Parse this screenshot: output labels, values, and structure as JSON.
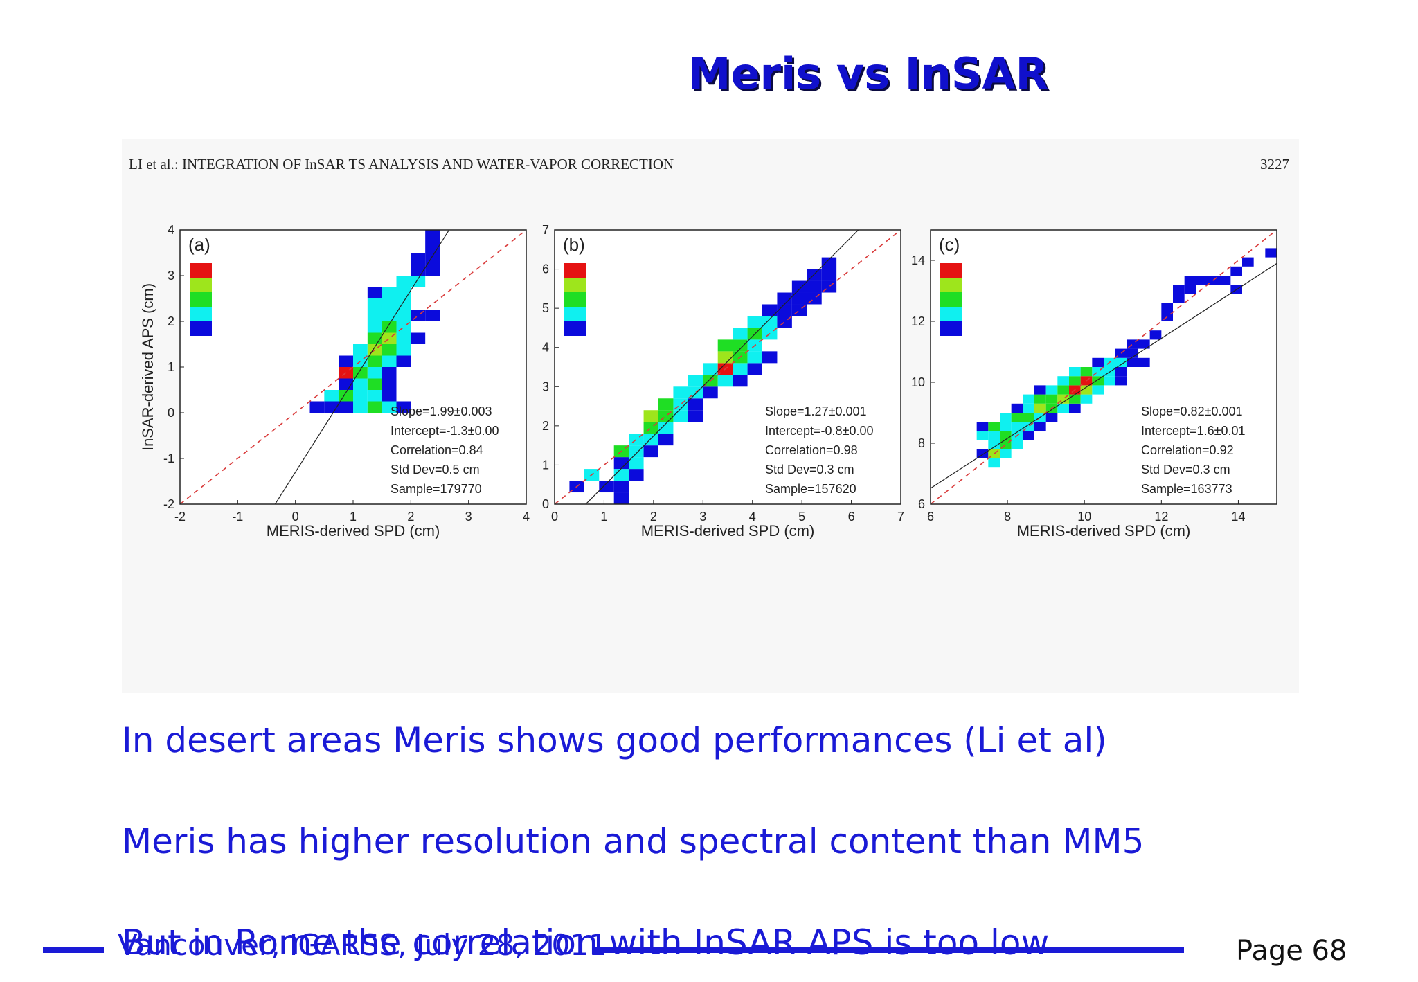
{
  "slide": {
    "title": "Meris vs InSAR",
    "paper_header_left": "LI et al.: INTEGRATION OF InSAR TS ANALYSIS AND WATER-VAPOR CORRECTION",
    "paper_header_right": "3227",
    "bullets": [
      "In desert areas Meris shows good performances (Li et al)",
      "Meris has higher resolution and spectral content than MM5",
      "But in Rome the correlation with InSAR APS is too low"
    ],
    "footer": "Vancouver, IGARSS, July 28, 2011",
    "page": "Page 68",
    "colors": {
      "title": "#1010cc",
      "text": "#1a1ad6",
      "footer_line": "#1a1ad6"
    }
  },
  "chart_data": [
    {
      "type": "heatmap",
      "panel_label": "(a)",
      "xlabel": "MERIS-derived SPD (cm)",
      "ylabel": "InSAR-derived APS (cm)",
      "xlim": [
        -2,
        4
      ],
      "ylim": [
        -2,
        4
      ],
      "xticks": [
        -2,
        -1,
        0,
        1,
        2,
        3,
        4
      ],
      "yticks": [
        -2,
        -1,
        0,
        1,
        2,
        3,
        4
      ],
      "bin": 0.25,
      "stats": [
        "Slope=1.99±0.003",
        "Intercept=-1.3±0.00",
        "Correlation=0.84",
        "Std Dev=0.5 cm",
        "Sample=179770"
      ],
      "fit": {
        "slope": 1.99,
        "intercept": -1.3
      },
      "one_to_one": true,
      "cells": [
        [
          0.25,
          0,
          1
        ],
        [
          0.5,
          0,
          1
        ],
        [
          0.75,
          0,
          1
        ],
        [
          1.0,
          0,
          2
        ],
        [
          1.25,
          0,
          3
        ],
        [
          1.5,
          0,
          2
        ],
        [
          1.75,
          0,
          1
        ],
        [
          0.5,
          0.25,
          2
        ],
        [
          0.75,
          0.25,
          3
        ],
        [
          1.0,
          0.25,
          2
        ],
        [
          1.25,
          0.25,
          2
        ],
        [
          1.5,
          0.25,
          1
        ],
        [
          0.75,
          0.5,
          1
        ],
        [
          1.0,
          0.5,
          2
        ],
        [
          1.25,
          0.5,
          3
        ],
        [
          1.5,
          0.5,
          1
        ],
        [
          0.75,
          0.75,
          5
        ],
        [
          1.0,
          0.75,
          3
        ],
        [
          1.25,
          0.75,
          2
        ],
        [
          1.5,
          0.75,
          1
        ],
        [
          0.75,
          1.0,
          1
        ],
        [
          1.0,
          1.0,
          2
        ],
        [
          1.25,
          1.0,
          3
        ],
        [
          1.5,
          1.0,
          2
        ],
        [
          1.75,
          1.0,
          1
        ],
        [
          1.0,
          1.25,
          2
        ],
        [
          1.25,
          1.25,
          4
        ],
        [
          1.5,
          1.25,
          3
        ],
        [
          1.75,
          1.25,
          2
        ],
        [
          1.25,
          1.5,
          3
        ],
        [
          1.5,
          1.5,
          4
        ],
        [
          1.75,
          1.5,
          2
        ],
        [
          2.0,
          1.5,
          1
        ],
        [
          1.25,
          1.75,
          2
        ],
        [
          1.5,
          1.75,
          3
        ],
        [
          1.75,
          1.75,
          2
        ],
        [
          1.25,
          2.0,
          2
        ],
        [
          1.5,
          2.0,
          2
        ],
        [
          1.75,
          2.0,
          2
        ],
        [
          2.0,
          2.0,
          1
        ],
        [
          2.25,
          2.0,
          1
        ],
        [
          1.25,
          2.25,
          2
        ],
        [
          1.5,
          2.25,
          2
        ],
        [
          1.75,
          2.25,
          2
        ],
        [
          1.25,
          2.5,
          1
        ],
        [
          1.5,
          2.5,
          2
        ],
        [
          1.75,
          2.5,
          2
        ],
        [
          1.75,
          2.75,
          2
        ],
        [
          2.0,
          2.75,
          2
        ],
        [
          2.0,
          3.0,
          1
        ],
        [
          2.25,
          3.0,
          1
        ],
        [
          2.0,
          3.25,
          1
        ],
        [
          2.25,
          3.25,
          1
        ],
        [
          2.25,
          3.5,
          1
        ],
        [
          2.25,
          3.75,
          1
        ]
      ]
    },
    {
      "type": "heatmap",
      "panel_label": "(b)",
      "xlabel": "MERIS-derived SPD (cm)",
      "ylabel": "",
      "xlim": [
        0,
        7
      ],
      "ylim": [
        0,
        7
      ],
      "xticks": [
        0,
        1,
        2,
        3,
        4,
        5,
        6,
        7
      ],
      "yticks": [
        0,
        1,
        2,
        3,
        4,
        5,
        6,
        7
      ],
      "bin": 0.3,
      "stats": [
        "Slope=1.27±0.001",
        "Intercept=-0.8±0.00",
        "Correlation=0.98",
        "Std Dev=0.3 cm",
        "Sample=157620"
      ],
      "fit": {
        "slope": 1.27,
        "intercept": -0.8
      },
      "one_to_one": true,
      "cells": [
        [
          0.3,
          0.3,
          1
        ],
        [
          0.6,
          0.6,
          2
        ],
        [
          0.9,
          0.3,
          1
        ],
        [
          1.2,
          0.3,
          1
        ],
        [
          1.2,
          0.6,
          2
        ],
        [
          1.2,
          0.0,
          1
        ],
        [
          1.2,
          0.9,
          1
        ],
        [
          1.5,
          0.6,
          1
        ],
        [
          1.5,
          0.9,
          2
        ],
        [
          1.2,
          1.2,
          3
        ],
        [
          1.5,
          1.2,
          2
        ],
        [
          1.8,
          1.2,
          1
        ],
        [
          1.5,
          1.5,
          2
        ],
        [
          1.8,
          1.5,
          2
        ],
        [
          2.1,
          1.5,
          1
        ],
        [
          1.8,
          1.8,
          3
        ],
        [
          2.1,
          1.8,
          2
        ],
        [
          1.8,
          2.1,
          4
        ],
        [
          2.1,
          2.1,
          3
        ],
        [
          2.4,
          2.1,
          2
        ],
        [
          2.7,
          2.1,
          1
        ],
        [
          2.4,
          2.4,
          2
        ],
        [
          2.7,
          2.4,
          1
        ],
        [
          2.1,
          2.4,
          3
        ],
        [
          2.4,
          2.7,
          2
        ],
        [
          2.7,
          2.7,
          2
        ],
        [
          3.0,
          2.7,
          1
        ],
        [
          2.7,
          3.0,
          2
        ],
        [
          3.0,
          3.0,
          3
        ],
        [
          3.3,
          3.0,
          2
        ],
        [
          3.6,
          3.0,
          1
        ],
        [
          3.0,
          3.3,
          2
        ],
        [
          3.3,
          3.3,
          5
        ],
        [
          3.6,
          3.3,
          2
        ],
        [
          3.9,
          3.3,
          1
        ],
        [
          3.3,
          3.6,
          4
        ],
        [
          3.6,
          3.6,
          3
        ],
        [
          3.9,
          3.6,
          2
        ],
        [
          4.2,
          3.6,
          1
        ],
        [
          3.3,
          3.9,
          3
        ],
        [
          3.6,
          3.9,
          3
        ],
        [
          3.9,
          3.9,
          2
        ],
        [
          3.6,
          4.2,
          2
        ],
        [
          3.9,
          4.2,
          3
        ],
        [
          4.2,
          4.2,
          2
        ],
        [
          3.9,
          4.5,
          2
        ],
        [
          4.2,
          4.5,
          2
        ],
        [
          4.5,
          4.5,
          1
        ],
        [
          4.2,
          4.8,
          1
        ],
        [
          4.5,
          4.8,
          1
        ],
        [
          4.8,
          4.8,
          1
        ],
        [
          4.5,
          5.1,
          1
        ],
        [
          4.8,
          5.1,
          1
        ],
        [
          5.1,
          5.1,
          1
        ],
        [
          4.8,
          5.4,
          1
        ],
        [
          5.1,
          5.4,
          1
        ],
        [
          5.4,
          5.4,
          1
        ],
        [
          5.1,
          5.7,
          1
        ],
        [
          5.4,
          5.7,
          1
        ],
        [
          5.4,
          6.0,
          1
        ]
      ]
    },
    {
      "type": "heatmap",
      "panel_label": "(c)",
      "xlabel": "MERIS-derived SPD (cm)",
      "ylabel": "",
      "xlim": [
        6,
        15
      ],
      "ylim": [
        6,
        15
      ],
      "xticks": [
        6,
        8,
        10,
        12,
        14
      ],
      "yticks": [
        6,
        8,
        10,
        12,
        14
      ],
      "bin": 0.3,
      "stats": [
        "Slope=0.82±0.001",
        "Intercept=1.6±0.01",
        "Correlation=0.92",
        "Std Dev=0.3 cm",
        "Sample=163773"
      ],
      "fit": {
        "slope": 0.82,
        "intercept": 1.6
      },
      "one_to_one": true,
      "cells": [
        [
          7.2,
          7.5,
          1
        ],
        [
          7.5,
          7.2,
          2
        ],
        [
          7.5,
          7.5,
          4
        ],
        [
          7.8,
          7.5,
          2
        ],
        [
          7.5,
          7.8,
          2
        ],
        [
          7.8,
          7.8,
          3
        ],
        [
          8.1,
          7.8,
          2
        ],
        [
          7.2,
          8.1,
          2
        ],
        [
          7.5,
          8.1,
          2
        ],
        [
          7.8,
          8.1,
          3
        ],
        [
          8.1,
          8.1,
          2
        ],
        [
          8.4,
          8.1,
          1
        ],
        [
          7.2,
          8.4,
          1
        ],
        [
          7.5,
          8.4,
          3
        ],
        [
          7.8,
          8.4,
          2
        ],
        [
          8.1,
          8.4,
          2
        ],
        [
          8.4,
          8.4,
          2
        ],
        [
          8.7,
          8.4,
          1
        ],
        [
          7.8,
          8.7,
          2
        ],
        [
          8.1,
          8.7,
          3
        ],
        [
          8.4,
          8.7,
          3
        ],
        [
          8.7,
          8.7,
          2
        ],
        [
          9.0,
          8.7,
          1
        ],
        [
          8.1,
          9.0,
          1
        ],
        [
          8.4,
          9.0,
          2
        ],
        [
          8.7,
          9.0,
          4
        ],
        [
          9.0,
          9.0,
          3
        ],
        [
          9.3,
          9.0,
          2
        ],
        [
          9.6,
          9.0,
          1
        ],
        [
          8.4,
          9.3,
          2
        ],
        [
          8.7,
          9.3,
          3
        ],
        [
          9.0,
          9.3,
          3
        ],
        [
          9.3,
          9.3,
          4
        ],
        [
          9.6,
          9.3,
          3
        ],
        [
          9.9,
          9.3,
          2
        ],
        [
          8.7,
          9.6,
          1
        ],
        [
          9.0,
          9.6,
          2
        ],
        [
          9.3,
          9.6,
          3
        ],
        [
          9.6,
          9.6,
          5
        ],
        [
          9.9,
          9.6,
          4
        ],
        [
          10.2,
          9.6,
          2
        ],
        [
          9.3,
          9.9,
          2
        ],
        [
          9.6,
          9.9,
          3
        ],
        [
          9.9,
          9.9,
          5
        ],
        [
          10.2,
          9.9,
          3
        ],
        [
          10.5,
          9.9,
          2
        ],
        [
          10.8,
          9.9,
          1
        ],
        [
          9.6,
          10.2,
          2
        ],
        [
          9.9,
          10.2,
          3
        ],
        [
          10.2,
          10.2,
          2
        ],
        [
          10.5,
          10.2,
          2
        ],
        [
          10.8,
          10.2,
          1
        ],
        [
          10.2,
          10.5,
          1
        ],
        [
          10.5,
          10.5,
          2
        ],
        [
          10.8,
          10.5,
          2
        ],
        [
          11.1,
          10.5,
          1
        ],
        [
          10.8,
          10.8,
          1
        ],
        [
          11.1,
          10.8,
          1
        ],
        [
          11.4,
          10.5,
          1
        ],
        [
          11.1,
          11.1,
          1
        ],
        [
          11.4,
          11.1,
          1
        ],
        [
          11.7,
          11.4,
          1
        ],
        [
          12.0,
          12.0,
          1
        ],
        [
          12.0,
          12.3,
          1
        ],
        [
          12.3,
          12.6,
          1
        ],
        [
          12.3,
          12.9,
          1
        ],
        [
          12.6,
          13.2,
          1
        ],
        [
          12.9,
          13.2,
          1
        ],
        [
          13.2,
          13.2,
          1
        ],
        [
          13.5,
          13.2,
          1
        ],
        [
          12.6,
          12.9,
          1
        ],
        [
          13.8,
          12.9,
          1
        ],
        [
          13.8,
          13.5,
          1
        ],
        [
          14.1,
          13.8,
          1
        ],
        [
          14.7,
          14.1,
          1
        ]
      ]
    }
  ],
  "colorbar": [
    "#e51212",
    "#9ee51c",
    "#1fde24",
    "#0ff0f0",
    "#0b0bdc"
  ]
}
